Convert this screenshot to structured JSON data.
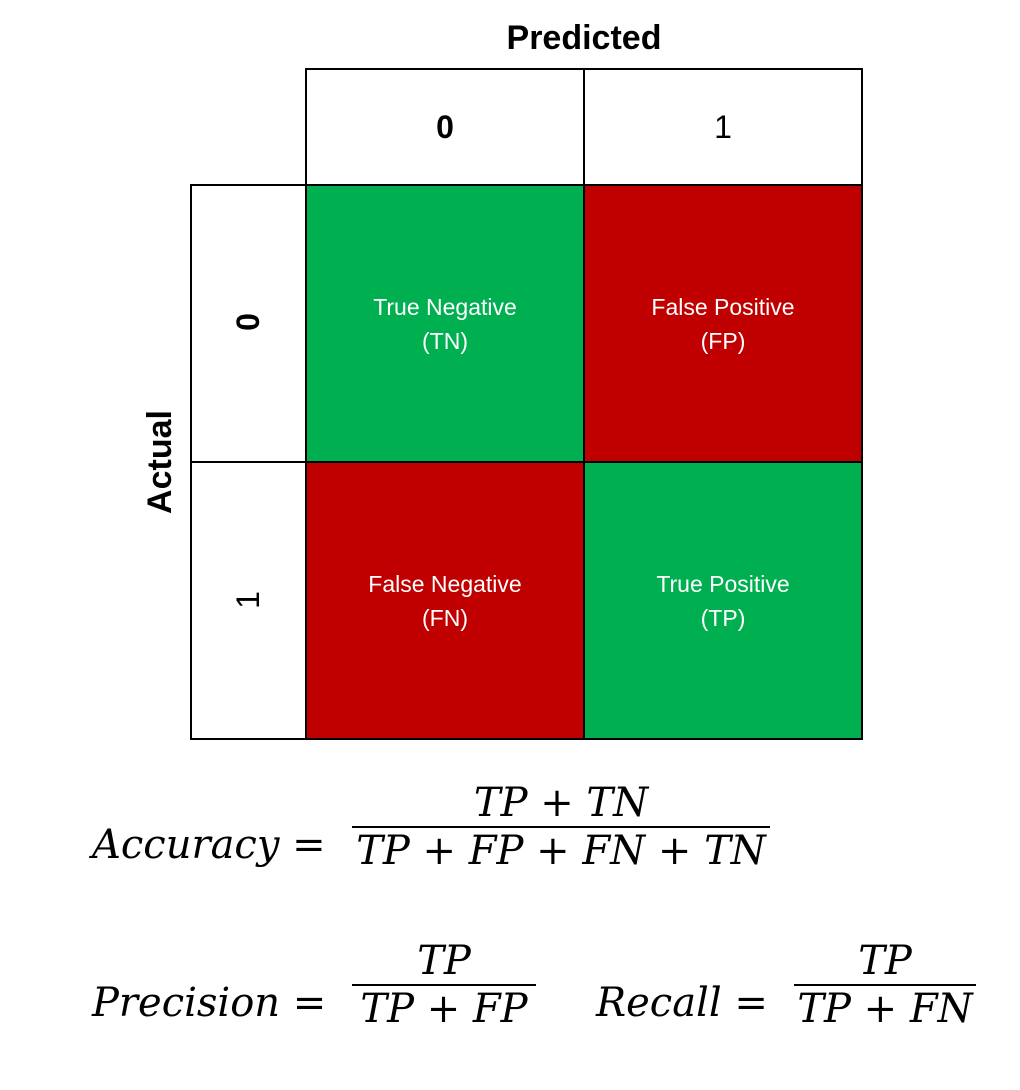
{
  "axis_labels": {
    "predicted": "Predicted",
    "actual": "Actual"
  },
  "columns": [
    "0",
    "1"
  ],
  "rows": [
    "0",
    "1"
  ],
  "cells": {
    "tn": {
      "line1": "True Negative",
      "line2": "(TN)"
    },
    "fp": {
      "line1": "False Positive",
      "line2": "(FP)"
    },
    "fn": {
      "line1": "False Negative",
      "line2": "(FN)"
    },
    "tp": {
      "line1": "True Positive",
      "line2": "(TP)"
    }
  },
  "colors": {
    "correct": "#00b050",
    "incorrect": "#c00000",
    "border": "#000000"
  },
  "formulas": {
    "accuracy": {
      "lhs": "Accuracy =",
      "numerator": "TP + TN",
      "denominator": "TP + FP + FN + TN"
    },
    "precision": {
      "lhs": "Precision =",
      "numerator": "TP",
      "denominator": "TP + FP"
    },
    "recall": {
      "lhs": "Recall =",
      "numerator": "TP",
      "denominator": "TP + FN"
    }
  }
}
